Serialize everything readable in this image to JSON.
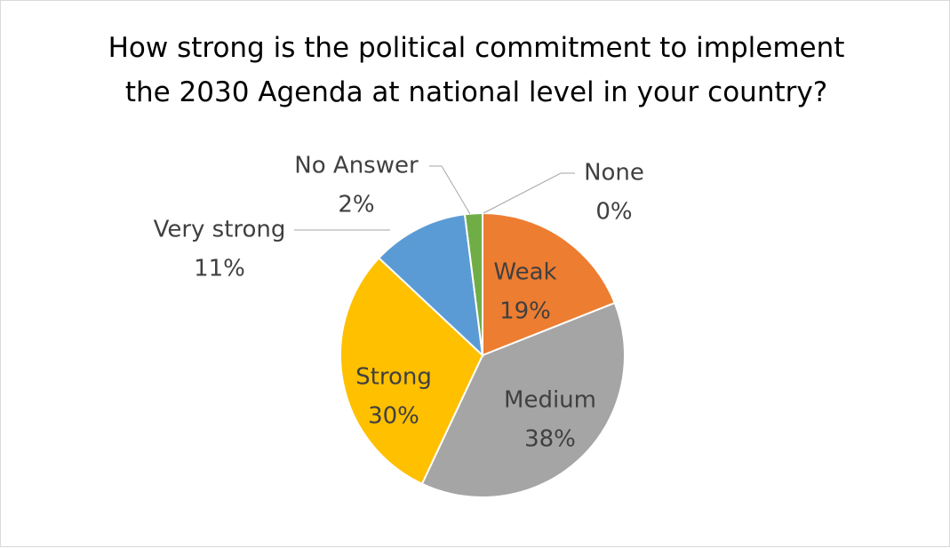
{
  "chart_data": {
    "type": "pie",
    "title": "How strong is the political commitment to implement the 2030 Agenda at national level in your country?",
    "categories": [
      "Weak",
      "Medium",
      "Strong",
      "Very strong",
      "No Answer",
      "None"
    ],
    "values": [
      19,
      38,
      30,
      11,
      2,
      0
    ],
    "value_labels": [
      "19%",
      "38%",
      "30%",
      "11%",
      "2%",
      "0%"
    ],
    "colors": [
      "#ED7D31",
      "#A5A5A5",
      "#FFC000",
      "#5B9BD5",
      "#70AD47",
      "#264478"
    ],
    "start_angle_deg": 0,
    "direction": "clockwise",
    "legend": "none"
  }
}
